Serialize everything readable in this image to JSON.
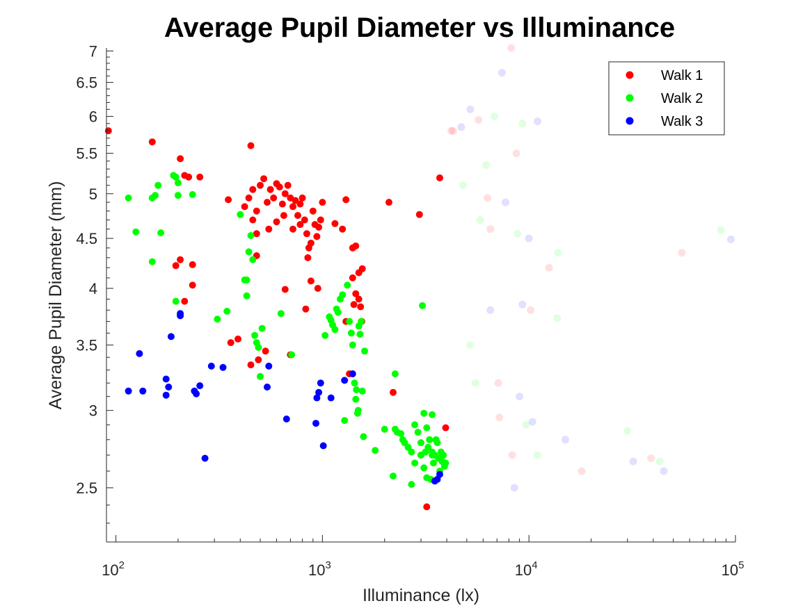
{
  "chart_data": {
    "type": "scatter",
    "title": "Average Pupil Diameter vs Illuminance",
    "xlabel": "Illuminance (lx)",
    "ylabel": "Average Pupil Diameter (mm)",
    "x_scale": "log",
    "y_scale": "log",
    "xlim": [
      90,
      100000
    ],
    "ylim": [
      2.2,
      7.05
    ],
    "x_ticks": [
      {
        "value": 100,
        "base": "10",
        "exp": "2"
      },
      {
        "value": 1000,
        "base": "10",
        "exp": "3"
      },
      {
        "value": 10000,
        "base": "10",
        "exp": "4"
      },
      {
        "value": 100000,
        "base": "10",
        "exp": "5"
      }
    ],
    "y_ticks": [
      {
        "value": 2.5,
        "label": "2.5"
      },
      {
        "value": 3,
        "label": "3"
      },
      {
        "value": 3.5,
        "label": "3.5"
      },
      {
        "value": 4,
        "label": "4"
      },
      {
        "value": 4.5,
        "label": "4.5"
      },
      {
        "value": 5,
        "label": "5"
      },
      {
        "value": 5.5,
        "label": "5.5"
      },
      {
        "value": 6,
        "label": "6"
      },
      {
        "value": 6.5,
        "label": "6.5"
      },
      {
        "value": 7,
        "label": "7"
      }
    ],
    "grid": false,
    "legend_position": "top-right",
    "series": [
      {
        "name": "Walk 1",
        "color": "#ff0000",
        "points": [
          [
            92,
            5.8
          ],
          [
            150,
            5.65
          ],
          [
            205,
            5.43
          ],
          [
            215,
            5.22
          ],
          [
            225,
            5.2
          ],
          [
            255,
            5.2
          ],
          [
            350,
            4.93
          ],
          [
            450,
            5.6
          ],
          [
            195,
            4.22
          ],
          [
            205,
            4.28
          ],
          [
            235,
            4.23
          ],
          [
            235,
            4.03
          ],
          [
            215,
            3.88
          ],
          [
            360,
            3.52
          ],
          [
            390,
            3.55
          ],
          [
            450,
            3.34
          ],
          [
            490,
            3.38
          ],
          [
            530,
            3.45
          ],
          [
            700,
            3.42
          ],
          [
            480,
            4.32
          ],
          [
            660,
            3.99
          ],
          [
            830,
            3.81
          ],
          [
            420,
            4.85
          ],
          [
            440,
            4.95
          ],
          [
            460,
            5.05
          ],
          [
            480,
            4.8
          ],
          [
            500,
            5.1
          ],
          [
            520,
            5.18
          ],
          [
            540,
            4.9
          ],
          [
            560,
            5.05
          ],
          [
            580,
            4.95
          ],
          [
            600,
            5.12
          ],
          [
            620,
            5.08
          ],
          [
            640,
            4.88
          ],
          [
            660,
            5.0
          ],
          [
            680,
            5.1
          ],
          [
            700,
            4.95
          ],
          [
            720,
            4.85
          ],
          [
            740,
            4.92
          ],
          [
            760,
            4.75
          ],
          [
            780,
            4.88
          ],
          [
            800,
            4.95
          ],
          [
            820,
            4.7
          ],
          [
            840,
            4.55
          ],
          [
            860,
            4.4
          ],
          [
            880,
            4.45
          ],
          [
            900,
            4.8
          ],
          [
            920,
            4.65
          ],
          [
            940,
            4.52
          ],
          [
            960,
            4.62
          ],
          [
            980,
            4.7
          ],
          [
            1000,
            4.9
          ],
          [
            460,
            4.7
          ],
          [
            480,
            4.55
          ],
          [
            550,
            4.6
          ],
          [
            600,
            4.68
          ],
          [
            650,
            4.75
          ],
          [
            720,
            4.6
          ],
          [
            780,
            4.65
          ],
          [
            850,
            4.3
          ],
          [
            880,
            4.07
          ],
          [
            950,
            4.0
          ],
          [
            1150,
            4.66
          ],
          [
            1250,
            4.6
          ],
          [
            1300,
            4.93
          ],
          [
            1400,
            4.4
          ],
          [
            1450,
            4.42
          ],
          [
            1400,
            4.1
          ],
          [
            1500,
            4.15
          ],
          [
            1560,
            4.19
          ],
          [
            1450,
            3.95
          ],
          [
            1500,
            3.9
          ],
          [
            1530,
            3.83
          ],
          [
            1550,
            3.7
          ],
          [
            1420,
            3.85
          ],
          [
            1350,
            3.27
          ],
          [
            1300,
            3.7
          ],
          [
            2100,
            4.9
          ],
          [
            2950,
            4.76
          ],
          [
            3700,
            5.19
          ],
          [
            2200,
            3.13
          ],
          [
            3950,
            2.88
          ],
          [
            3200,
            2.39
          ],
          [
            3000,
            2.7
          ]
        ]
      },
      {
        "name": "Walk 2",
        "color": "#00ff00",
        "points": [
          [
            115,
            4.95
          ],
          [
            125,
            4.57
          ],
          [
            150,
            4.26
          ],
          [
            150,
            4.95
          ],
          [
            155,
            4.98
          ],
          [
            160,
            5.1
          ],
          [
            165,
            4.56
          ],
          [
            190,
            5.22
          ],
          [
            195,
            5.2
          ],
          [
            200,
            4.98
          ],
          [
            200,
            5.13
          ],
          [
            235,
            4.99
          ],
          [
            195,
            3.88
          ],
          [
            310,
            3.72
          ],
          [
            345,
            3.79
          ],
          [
            400,
            4.76
          ],
          [
            420,
            4.08
          ],
          [
            430,
            4.08
          ],
          [
            430,
            3.93
          ],
          [
            440,
            4.36
          ],
          [
            450,
            4.53
          ],
          [
            460,
            4.28
          ],
          [
            470,
            3.58
          ],
          [
            480,
            3.52
          ],
          [
            490,
            3.48
          ],
          [
            500,
            3.25
          ],
          [
            510,
            3.64
          ],
          [
            630,
            3.77
          ],
          [
            710,
            3.42
          ],
          [
            1030,
            3.58
          ],
          [
            1080,
            3.74
          ],
          [
            1100,
            3.71
          ],
          [
            1120,
            3.67
          ],
          [
            1150,
            3.63
          ],
          [
            1170,
            3.81
          ],
          [
            1190,
            3.78
          ],
          [
            1220,
            3.9
          ],
          [
            1250,
            3.94
          ],
          [
            1280,
            2.93
          ],
          [
            1320,
            4.03
          ],
          [
            1350,
            3.7
          ],
          [
            1380,
            3.6
          ],
          [
            1400,
            3.5
          ],
          [
            1430,
            3.2
          ],
          [
            1450,
            3.08
          ],
          [
            1460,
            3.15
          ],
          [
            1480,
            2.98
          ],
          [
            1490,
            3.0
          ],
          [
            1500,
            3.66
          ],
          [
            1520,
            3.59
          ],
          [
            1540,
            3.7
          ],
          [
            1560,
            3.14
          ],
          [
            1580,
            2.82
          ],
          [
            1600,
            3.45
          ],
          [
            1800,
            2.73
          ],
          [
            2000,
            2.87
          ],
          [
            2200,
            2.57
          ],
          [
            2250,
            2.87
          ],
          [
            2300,
            2.85
          ],
          [
            2400,
            2.84
          ],
          [
            2450,
            2.8
          ],
          [
            2500,
            2.78
          ],
          [
            2600,
            2.75
          ],
          [
            2700,
            2.72
          ],
          [
            2800,
            2.9
          ],
          [
            2900,
            2.85
          ],
          [
            3000,
            2.78
          ],
          [
            3000,
            2.7
          ],
          [
            3050,
            3.84
          ],
          [
            3100,
            2.98
          ],
          [
            3150,
            2.72
          ],
          [
            3200,
            2.88
          ],
          [
            3250,
            2.75
          ],
          [
            3300,
            2.8
          ],
          [
            3350,
            2.55
          ],
          [
            3400,
            2.72
          ],
          [
            3450,
            2.65
          ],
          [
            3500,
            2.7
          ],
          [
            3550,
            2.8
          ],
          [
            3600,
            2.78
          ],
          [
            3650,
            2.68
          ],
          [
            3700,
            2.6
          ],
          [
            3750,
            2.72
          ],
          [
            3800,
            2.66
          ],
          [
            3850,
            2.7
          ],
          [
            3900,
            2.63
          ],
          [
            3950,
            2.65
          ],
          [
            2800,
            2.65
          ],
          [
            3100,
            2.62
          ],
          [
            3400,
            2.7
          ],
          [
            2250,
            3.27
          ],
          [
            2700,
            2.52
          ],
          [
            3400,
            2.97
          ],
          [
            3200,
            2.56
          ]
        ]
      },
      {
        "name": "Walk 3",
        "color": "#0000ff",
        "points": [
          [
            115,
            3.14
          ],
          [
            135,
            3.14
          ],
          [
            130,
            3.43
          ],
          [
            175,
            3.11
          ],
          [
            175,
            3.23
          ],
          [
            180,
            3.17
          ],
          [
            185,
            3.57
          ],
          [
            205,
            3.77
          ],
          [
            205,
            3.75
          ],
          [
            240,
            3.14
          ],
          [
            245,
            3.12
          ],
          [
            255,
            3.18
          ],
          [
            270,
            2.68
          ],
          [
            290,
            3.33
          ],
          [
            330,
            3.32
          ],
          [
            540,
            3.17
          ],
          [
            550,
            3.33
          ],
          [
            670,
            2.94
          ],
          [
            930,
            2.91
          ],
          [
            940,
            3.09
          ],
          [
            960,
            3.13
          ],
          [
            980,
            3.2
          ],
          [
            1010,
            2.76
          ],
          [
            1100,
            3.09
          ],
          [
            1280,
            3.22
          ],
          [
            1400,
            3.27
          ],
          [
            3500,
            2.54
          ],
          [
            3600,
            2.55
          ],
          [
            3700,
            2.58
          ]
        ]
      }
    ],
    "faint_points": [
      [
        4300,
        5.8
      ],
      [
        4800,
        5.1
      ],
      [
        5200,
        6.1
      ],
      [
        5700,
        5.95
      ],
      [
        6800,
        6.0
      ],
      [
        7400,
        6.65
      ],
      [
        8200,
        7.05
      ],
      [
        9300,
        5.9
      ],
      [
        11000,
        5.93
      ],
      [
        8700,
        5.5
      ],
      [
        6200,
        5.35
      ],
      [
        4700,
        5.85
      ],
      [
        6500,
        4.6
      ],
      [
        8800,
        4.55
      ],
      [
        10000,
        4.5
      ],
      [
        12500,
        4.2
      ],
      [
        13800,
        4.35
      ],
      [
        9300,
        3.85
      ],
      [
        10200,
        3.8
      ],
      [
        13700,
        3.73
      ],
      [
        9000,
        3.1
      ],
      [
        7200,
        2.95
      ],
      [
        9700,
        2.9
      ],
      [
        10400,
        2.92
      ],
      [
        8300,
        2.7
      ],
      [
        11000,
        2.7
      ],
      [
        15000,
        2.8
      ],
      [
        18000,
        2.6
      ],
      [
        30000,
        2.86
      ],
      [
        32000,
        2.66
      ],
      [
        39000,
        2.68
      ],
      [
        43000,
        2.66
      ],
      [
        45000,
        2.6
      ],
      [
        55000,
        4.35
      ],
      [
        85000,
        4.59
      ],
      [
        95000,
        4.49
      ],
      [
        4200,
        5.8
      ],
      [
        5800,
        4.7
      ],
      [
        6500,
        3.8
      ],
      [
        7100,
        3.2
      ],
      [
        5200,
        3.5
      ],
      [
        7700,
        4.9
      ],
      [
        6300,
        4.95
      ],
      [
        5500,
        3.2
      ],
      [
        8500,
        2.5
      ]
    ]
  }
}
